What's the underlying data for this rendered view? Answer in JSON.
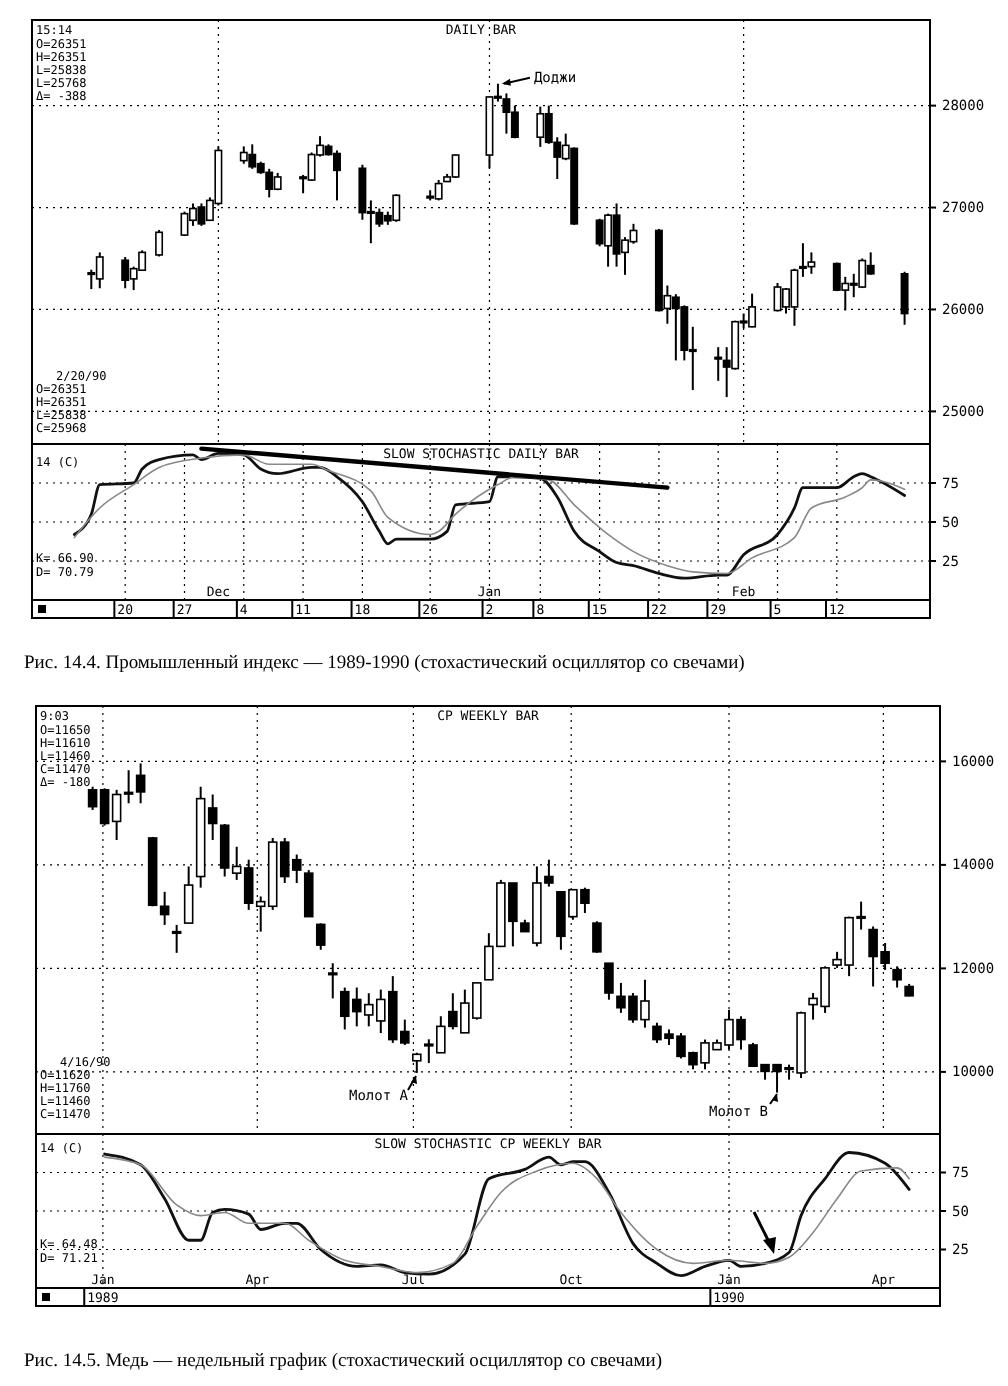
{
  "chart_data": [
    {
      "type": "candlestick",
      "title": "DAILY BAR",
      "color": "#000000",
      "xlim": [
        "1989-11-09",
        "1990-02-23"
      ],
      "ylim": [
        24680,
        28840
      ],
      "yticks": [
        25000,
        26000,
        27000,
        28000
      ],
      "xticks": [
        {
          "value": "1989-12-01",
          "label": null
        },
        {
          "value": "1990-01-02",
          "label": null
        },
        {
          "value": "1990-02-01",
          "label": null
        }
      ],
      "tick_labels": "y",
      "grid": true,
      "x": [
        "1989-11-16",
        "1989-11-17",
        "1989-11-20",
        "1989-11-21",
        "1989-11-22",
        "1989-11-24",
        "1989-11-27",
        "1989-11-28",
        "1989-11-29",
        "1989-11-30",
        "1989-12-01",
        "1989-12-04",
        "1989-12-05",
        "1989-12-06",
        "1989-12-07",
        "1989-12-08",
        "1989-12-11",
        "1989-12-12",
        "1989-12-13",
        "1989-12-14",
        "1989-12-15",
        "1989-12-18",
        "1989-12-19",
        "1989-12-20",
        "1989-12-21",
        "1989-12-22",
        "1989-12-26",
        "1989-12-27",
        "1989-12-28",
        "1989-12-29",
        "1990-01-02",
        "1990-01-03",
        "1990-01-04",
        "1990-01-05",
        "1990-01-08",
        "1990-01-09",
        "1990-01-10",
        "1990-01-11",
        "1990-01-12",
        "1990-01-15",
        "1990-01-16",
        "1990-01-17",
        "1990-01-18",
        "1990-01-19",
        "1990-01-22",
        "1990-01-23",
        "1990-01-24",
        "1990-01-25",
        "1990-01-26",
        "1990-01-29",
        "1990-01-30",
        "1990-01-31",
        "1990-02-01",
        "1990-02-02",
        "1990-02-05",
        "1990-02-06",
        "1990-02-07",
        "1990-02-08",
        "1990-02-09",
        "1990-02-12",
        "1990-02-13",
        "1990-02-14",
        "1990-02-15",
        "1990-02-16",
        "1990-02-20"
      ],
      "ohlc": [
        [
          26350,
          26390,
          26200,
          26360
        ],
        [
          26300,
          26560,
          26208,
          26515
        ],
        [
          26483,
          26515,
          26208,
          26287
        ],
        [
          26300,
          26420,
          26190,
          26400
        ],
        [
          26385,
          26580,
          26380,
          26560
        ],
        [
          26535,
          26780,
          26520,
          26757
        ],
        [
          26730,
          26960,
          26720,
          26940
        ],
        [
          26875,
          27040,
          26820,
          26990
        ],
        [
          27005,
          27040,
          26820,
          26840
        ],
        [
          26875,
          27100,
          26870,
          27070
        ],
        [
          27040,
          27600,
          27020,
          27560
        ],
        [
          27460,
          27600,
          27430,
          27540
        ],
        [
          27520,
          27620,
          27380,
          27400
        ],
        [
          27430,
          27450,
          27330,
          27345
        ],
        [
          27345,
          27380,
          27100,
          27180
        ],
        [
          27180,
          27340,
          27170,
          27300
        ],
        [
          27290,
          27320,
          27140,
          27300
        ],
        [
          27270,
          27540,
          27260,
          27520
        ],
        [
          27516,
          27700,
          27500,
          27610
        ],
        [
          27600,
          27620,
          27510,
          27520
        ],
        [
          27530,
          27560,
          27070,
          27365
        ],
        [
          27385,
          27420,
          26880,
          26950
        ],
        [
          26960,
          27070,
          26650,
          26950
        ],
        [
          26950,
          26990,
          26810,
          26840
        ],
        [
          26920,
          26960,
          26830,
          26870
        ],
        [
          26875,
          27130,
          26860,
          27120
        ],
        [
          27100,
          27170,
          27070,
          27110
        ],
        [
          27085,
          27270,
          27070,
          27235
        ],
        [
          27255,
          27330,
          27250,
          27300
        ],
        [
          27300,
          27520,
          27290,
          27515
        ],
        [
          27515,
          28090,
          27385,
          28085
        ],
        [
          28085,
          28215,
          28040,
          28090
        ],
        [
          28065,
          28120,
          27725,
          27935
        ],
        [
          27935,
          28000,
          27680,
          27690
        ],
        [
          27690,
          27990,
          27595,
          27920
        ],
        [
          27920,
          28000,
          27625,
          27640
        ],
        [
          27640,
          27690,
          27280,
          27495
        ],
        [
          27480,
          27725,
          27465,
          27610
        ],
        [
          27580,
          27590,
          26830,
          26840
        ],
        [
          26875,
          26890,
          26620,
          26645
        ],
        [
          26625,
          26940,
          26420,
          26925
        ],
        [
          26925,
          27040,
          26420,
          26545
        ],
        [
          26560,
          26710,
          26340,
          26680
        ],
        [
          26665,
          26840,
          26645,
          26775
        ],
        [
          26775,
          26790,
          25980,
          25990
        ],
        [
          26010,
          26235,
          25860,
          26135
        ],
        [
          26120,
          26150,
          25500,
          26010
        ],
        [
          26025,
          26040,
          25500,
          25600
        ],
        [
          25605,
          25830,
          25210,
          25595
        ],
        [
          25530,
          25630,
          25300,
          25520
        ],
        [
          25500,
          25630,
          25140,
          25435
        ],
        [
          25420,
          25890,
          25410,
          25880
        ],
        [
          25875,
          25960,
          25815,
          25885
        ],
        [
          25830,
          26155,
          25825,
          26025
        ],
        [
          25990,
          26260,
          25980,
          26220
        ],
        [
          26025,
          26210,
          25960,
          26200
        ],
        [
          26025,
          26400,
          25840,
          26385
        ],
        [
          26410,
          26650,
          26320,
          26420
        ],
        [
          26420,
          26560,
          26350,
          26465
        ],
        [
          26450,
          26460,
          26180,
          26190
        ],
        [
          26190,
          26320,
          25990,
          26255
        ],
        [
          26250,
          26350,
          26120,
          26255
        ],
        [
          26220,
          26500,
          26210,
          26480
        ],
        [
          26430,
          26560,
          26340,
          26350
        ],
        [
          26350,
          26370,
          25850,
          25960
        ]
      ],
      "annotations": [
        "15:14",
        "O=26351",
        "H=26351",
        "L=25838",
        "L=25768",
        "Δ= -388",
        "2/20/90",
        "O=26351",
        "H=26351",
        "L=25838",
        "C=25968",
        {
          "text": "Доджи",
          "x": "1990-01-03",
          "y": 28215
        }
      ]
    },
    {
      "type": "line",
      "title": "SLOW STOCHASTIC DAILY BAR",
      "xlim": [
        "1989-11-09",
        "1990-02-23"
      ],
      "ylim": [
        0,
        100
      ],
      "yticks": [
        25,
        50,
        75
      ],
      "grid": true,
      "xticks": [
        {
          "value": "1989-11-20",
          "label": "20"
        },
        {
          "value": "1989-11-27",
          "label": "27"
        },
        {
          "value": "1989-12-04",
          "label": "4"
        },
        {
          "value": "1989-12-11",
          "label": "11"
        },
        {
          "value": "1989-12-18",
          "label": "18"
        },
        {
          "value": "1989-12-26",
          "label": "26"
        },
        {
          "value": "1990-01-02",
          "label": "2"
        },
        {
          "value": "1990-01-08",
          "label": "8"
        },
        {
          "value": "1990-01-15",
          "label": "15"
        },
        {
          "value": "1990-01-22",
          "label": "22"
        },
        {
          "value": "1990-01-29",
          "label": "29"
        },
        {
          "value": "1990-02-05",
          "label": "5"
        },
        {
          "value": "1990-02-12",
          "label": "12"
        }
      ],
      "x2lim": [
        "1989-11-09",
        "1990-02-23"
      ],
      "x2ticks": [
        {
          "value": "1989-12-01",
          "label": "Dec"
        },
        {
          "value": "1990-01-02",
          "label": "Jan"
        },
        {
          "value": "1990-02-01",
          "label": "Feb"
        }
      ],
      "series": [
        {
          "color": "#111111",
          "x": [
            "1989-11-14",
            "1989-11-16",
            "1989-11-17",
            "1989-11-21",
            "1989-11-22",
            "1989-11-24",
            "1989-11-28",
            "1989-11-29",
            "1989-12-01",
            "1989-12-04",
            "1989-12-06",
            "1989-12-08",
            "1989-12-12",
            "1989-12-13",
            "1989-12-15",
            "1989-12-18",
            "1989-12-20",
            "1989-12-21",
            "1989-12-22",
            "1989-12-26",
            "1989-12-28",
            "1989-12-29",
            "1990-01-02",
            "1990-01-03",
            "1990-01-05",
            "1990-01-08",
            "1990-01-10",
            "1990-01-12",
            "1990-01-15",
            "1990-01-17",
            "1990-01-19",
            "1990-01-22",
            "1990-01-25",
            "1990-01-29",
            "1990-01-30",
            "1990-02-01",
            "1990-02-05",
            "1990-02-07",
            "1990-02-08",
            "1990-02-12",
            "1990-02-14",
            "1990-02-15",
            "1990-02-16",
            "1990-02-20"
          ],
          "values": [
            42,
            55,
            74,
            75,
            84,
            90,
            93,
            90,
            94,
            93,
            84,
            81,
            85,
            85,
            79,
            63,
            44,
            36,
            39,
            39,
            44,
            61,
            63,
            79,
            79,
            78,
            66,
            44,
            31,
            24,
            22,
            17,
            14,
            16,
            16,
            29,
            42,
            59,
            72,
            72,
            79,
            81,
            79,
            67
          ]
        },
        {
          "color": "#888888",
          "x": [
            "1989-11-14",
            "1989-11-17",
            "1989-11-21",
            "1989-11-24",
            "1989-11-29",
            "1989-12-04",
            "1989-12-07",
            "1989-12-12",
            "1989-12-14",
            "1989-12-19",
            "1989-12-21",
            "1989-12-26",
            "1989-12-27",
            "1989-12-29",
            "1990-01-03",
            "1990-01-05",
            "1990-01-09",
            "1990-01-12",
            "1990-01-16",
            "1990-01-19",
            "1990-01-23",
            "1990-01-26",
            "1990-01-30",
            "1990-02-02",
            "1990-02-07",
            "1990-02-09",
            "1990-02-13",
            "1990-02-15",
            "1990-02-16",
            "1990-02-20"
          ],
          "values": [
            40,
            59,
            74,
            85,
            91,
            93,
            87,
            87,
            83,
            70,
            53,
            42,
            44,
            55,
            74,
            79,
            77,
            61,
            42,
            31,
            22,
            18,
            17,
            27,
            40,
            59,
            66,
            72,
            77,
            71
          ]
        },
        {
          "type": "line",
          "color": "#000000",
          "x": [
            "1989-11-29",
            "1990-01-23"
          ],
          "values": [
            97,
            72
          ]
        }
      ],
      "annotations": [
        "14 (C)",
        "K= 66.90",
        "D= 70.79",
        "Рис. 14.4. Промышленный индекс — 1989-1990 (стохастический осциллятор со свечами)"
      ]
    },
    {
      "type": "candlestick",
      "title": "CP WEEKLY BAR",
      "color": "#000000",
      "xlim": [
        "1988-11-23",
        "1990-05-04"
      ],
      "ylim": [
        8800,
        17070
      ],
      "yticks": [
        10000,
        12000,
        14000,
        16000
      ],
      "xticks": [
        {
          "value": "1989-01",
          "label": null
        },
        {
          "value": "1989-04",
          "label": null
        },
        {
          "value": "1989-07",
          "label": null
        },
        {
          "value": "1989-10",
          "label": null
        },
        {
          "value": "1990-01",
          "label": null
        },
        {
          "value": "1990-04",
          "label": null
        }
      ],
      "tick_labels": "y",
      "grid": true,
      "x": [
        "1988-12-26",
        "1989-01-02",
        "1989-01-09",
        "1989-01-16",
        "1989-01-23",
        "1989-01-30",
        "1989-02-06",
        "1989-02-13",
        "1989-02-20",
        "1989-02-27",
        "1989-03-06",
        "1989-03-13",
        "1989-03-20",
        "1989-03-27",
        "1989-04-03",
        "1989-04-10",
        "1989-04-17",
        "1989-04-24",
        "1989-05-01",
        "1989-05-08",
        "1989-05-15",
        "1989-05-22",
        "1989-05-29",
        "1989-06-05",
        "1989-06-12",
        "1989-06-19",
        "1989-06-26",
        "1989-07-03",
        "1989-07-10",
        "1989-07-17",
        "1989-07-24",
        "1989-07-31",
        "1989-08-07",
        "1989-08-14",
        "1989-08-21",
        "1989-08-28",
        "1989-09-04",
        "1989-09-11",
        "1989-09-18",
        "1989-09-25",
        "1989-10-02",
        "1989-10-09",
        "1989-10-16",
        "1989-10-23",
        "1989-10-30",
        "1989-11-06",
        "1989-11-13",
        "1989-11-20",
        "1989-11-27",
        "1989-12-04",
        "1989-12-11",
        "1989-12-18",
        "1989-12-25",
        "1990-01-01",
        "1990-01-08",
        "1990-01-15",
        "1990-01-22",
        "1990-01-29",
        "1990-02-05",
        "1990-02-12",
        "1990-02-19",
        "1990-02-26",
        "1990-03-05",
        "1990-03-12",
        "1990-03-19",
        "1990-03-26",
        "1990-04-02",
        "1990-04-09",
        "1990-04-16"
      ],
      "ohlc": [
        [
          15450,
          15510,
          15060,
          15125
        ],
        [
          15450,
          15480,
          14760,
          14800
        ],
        [
          14840,
          15450,
          14480,
          15360
        ],
        [
          15380,
          15830,
          15190,
          15400
        ],
        [
          15730,
          15960,
          15190,
          15410
        ],
        [
          14520,
          14540,
          13200,
          13220
        ],
        [
          13200,
          13480,
          12840,
          13040
        ],
        [
          12710,
          12840,
          12300,
          12700
        ],
        [
          12875,
          13970,
          12875,
          13610
        ],
        [
          13775,
          15510,
          13560,
          15280
        ],
        [
          15100,
          15360,
          14480,
          14800
        ],
        [
          14765,
          14790,
          13775,
          13940
        ],
        [
          13840,
          14350,
          13710,
          13970
        ],
        [
          13940,
          14100,
          13130,
          13260
        ],
        [
          13200,
          13390,
          12710,
          13290
        ],
        [
          13200,
          14520,
          13130,
          14440
        ],
        [
          14440,
          14520,
          13650,
          13775
        ],
        [
          14100,
          14200,
          13650,
          13900
        ],
        [
          13840,
          13900,
          13000,
          13000
        ],
        [
          12850,
          12870,
          12360,
          12450
        ],
        [
          11910,
          12100,
          11420,
          11900
        ],
        [
          11550,
          11630,
          10820,
          11075
        ],
        [
          11400,
          11630,
          10880,
          11165
        ],
        [
          11100,
          11520,
          10880,
          11300
        ],
        [
          10985,
          11590,
          10750,
          11400
        ],
        [
          11550,
          11850,
          10560,
          10625
        ],
        [
          10780,
          11010,
          10520,
          10560
        ],
        [
          10215,
          10370,
          9980,
          10340
        ],
        [
          10525,
          10630,
          10170,
          10535
        ],
        [
          10370,
          11075,
          10370,
          10880
        ],
        [
          11165,
          11520,
          10820,
          10880
        ],
        [
          10755,
          11590,
          10755,
          11330
        ],
        [
          11040,
          11720,
          11010,
          11720
        ],
        [
          11780,
          12680,
          11780,
          12425
        ],
        [
          12425,
          13710,
          12425,
          13650
        ],
        [
          13650,
          13650,
          12425,
          12910
        ],
        [
          12875,
          12940,
          12710,
          12710
        ],
        [
          12490,
          13970,
          12425,
          13650
        ],
        [
          13775,
          14100,
          13580,
          13650
        ],
        [
          13480,
          13480,
          12360,
          12620
        ],
        [
          13000,
          13520,
          12940,
          13520
        ],
        [
          13520,
          13560,
          13070,
          13260
        ],
        [
          12875,
          12910,
          12300,
          12320
        ],
        [
          12100,
          12100,
          11395,
          11525
        ],
        [
          11460,
          11720,
          11140,
          11240
        ],
        [
          11460,
          11525,
          10950,
          11010
        ],
        [
          11010,
          11780,
          10855,
          11370
        ],
        [
          10880,
          10950,
          10560,
          10625
        ],
        [
          10730,
          10820,
          10520,
          10650
        ],
        [
          10690,
          10750,
          10260,
          10300
        ],
        [
          10370,
          10390,
          10050,
          10140
        ],
        [
          10175,
          10625,
          10050,
          10560
        ],
        [
          10430,
          10625,
          10430,
          10560
        ],
        [
          10520,
          11200,
          10430,
          11010
        ],
        [
          11010,
          11075,
          10430,
          10625
        ],
        [
          10520,
          10560,
          10110,
          10110
        ],
        [
          10140,
          10140,
          9850,
          10010
        ],
        [
          10140,
          10140,
          9600,
          10010
        ],
        [
          10080,
          10140,
          9850,
          10050
        ],
        [
          9980,
          11165,
          9880,
          11140
        ],
        [
          11300,
          11525,
          11010,
          11420
        ],
        [
          11265,
          12040,
          11140,
          12010
        ],
        [
          12065,
          12320,
          12010,
          12170
        ],
        [
          12065,
          13000,
          11850,
          12980
        ],
        [
          12980,
          13290,
          12750,
          13000
        ],
        [
          12750,
          12810,
          11650,
          12230
        ],
        [
          12320,
          12490,
          11970,
          12100
        ],
        [
          11975,
          12040,
          11630,
          11780
        ],
        [
          11650,
          11700,
          11460,
          11470
        ]
      ],
      "annotations": [
        "9:03",
        "O=11650",
        "H=11610",
        "L=11460",
        "C=11470",
        "Δ= -180",
        "4/16/90",
        "O=11620",
        "H=11760",
        "L=11460",
        "C=11470",
        "Молот A",
        "Молот B"
      ]
    },
    {
      "type": "line",
      "title": "SLOW STOCHASTIC CP WEEKLY BAR",
      "xlim": [
        "1988-11-23",
        "1990-05-04"
      ],
      "ylim": [
        0,
        100
      ],
      "yticks": [
        25,
        50,
        75
      ],
      "grid": true,
      "xticks": [
        {
          "value": "1989",
          "label": "1989"
        },
        {
          "value": "1990",
          "label": "1990"
        }
      ],
      "x2lim": [
        "1988-11-23",
        "1990-05-04"
      ],
      "x2ticks": [
        {
          "value": "1989-01",
          "label": "Jan"
        },
        {
          "value": "1989-04",
          "label": "Apr"
        },
        {
          "value": "1989-07",
          "label": "Jul"
        },
        {
          "value": "1989-10",
          "label": "Oct"
        },
        {
          "value": "1990-01",
          "label": "Jan"
        },
        {
          "value": "1990-04",
          "label": "Apr"
        }
      ],
      "series": [
        {
          "color": "#111111",
          "x": [
            "1989-01-02",
            "1989-01-23",
            "1989-02-06",
            "1989-02-20",
            "1989-02-27",
            "1989-03-06",
            "1989-03-13",
            "1989-03-27",
            "1989-04-03",
            "1989-04-17",
            "1989-04-24",
            "1989-05-08",
            "1989-05-29",
            "1989-06-12",
            "1989-06-26",
            "1989-07-10",
            "1989-07-31",
            "1989-08-14",
            "1989-09-04",
            "1989-09-18",
            "1989-09-25",
            "1989-10-02",
            "1989-10-09",
            "1989-10-23",
            "1989-11-06",
            "1989-11-20",
            "1989-12-04",
            "1989-12-18",
            "1990-01-01",
            "1990-01-08",
            "1990-01-22",
            "1990-02-05",
            "1990-02-12",
            "1990-02-26",
            "1990-03-12",
            "1990-04-02",
            "1990-04-16"
          ],
          "values": [
            87,
            80,
            58,
            31,
            31,
            49,
            51,
            48,
            38,
            42,
            42,
            25,
            14,
            15,
            10,
            9,
            22,
            71,
            77,
            85,
            80,
            82,
            82,
            62,
            29,
            16,
            8,
            14,
            18,
            14,
            16,
            23,
            47,
            71,
            88,
            81,
            64
          ]
        },
        {
          "color": "#888888",
          "x": [
            "1989-01-02",
            "1989-01-23",
            "1989-02-13",
            "1989-02-27",
            "1989-03-13",
            "1989-03-27",
            "1989-04-17",
            "1989-05-01",
            "1989-05-22",
            "1989-06-12",
            "1989-07-03",
            "1989-07-24",
            "1989-08-07",
            "1989-08-21",
            "1989-09-11",
            "1989-10-02",
            "1989-10-16",
            "1989-10-30",
            "1989-11-20",
            "1989-12-11",
            "1990-01-01",
            "1990-01-22",
            "1990-02-05",
            "1990-02-19",
            "1990-03-05",
            "1990-03-19",
            "1990-04-09",
            "1990-04-16"
          ],
          "values": [
            85,
            80,
            54,
            47,
            49,
            42,
            42,
            31,
            18,
            14,
            10,
            16,
            40,
            62,
            76,
            81,
            71,
            49,
            25,
            16,
            18,
            16,
            20,
            36,
            58,
            76,
            78,
            71
          ]
        }
      ],
      "annotations": [
        "14 (C)",
        "K= 64.48",
        "D= 71.21",
        "Рис. 14.5. Медь — недельный график (стохастический осциллятор со свечами)"
      ]
    }
  ]
}
